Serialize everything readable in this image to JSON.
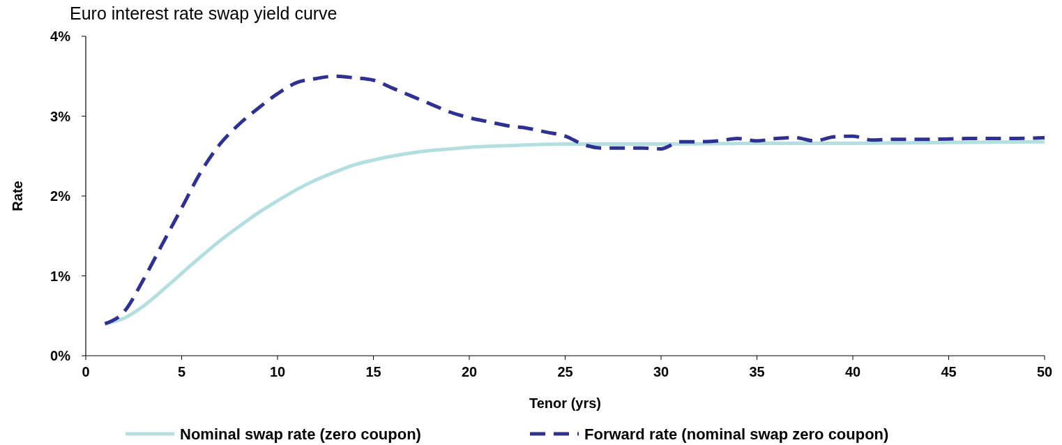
{
  "chart_data": {
    "type": "line",
    "title": "Euro interest rate swap yield curve",
    "xlabel": "Tenor (yrs)",
    "ylabel": "Rate",
    "xlim": [
      0,
      50
    ],
    "xticks": [
      0,
      5,
      10,
      15,
      20,
      25,
      30,
      35,
      40,
      45,
      50
    ],
    "ylim": [
      0,
      4
    ],
    "yticks": [
      {
        "value": 0,
        "label": "0%"
      },
      {
        "value": 1,
        "label": "1%"
      },
      {
        "value": 2,
        "label": "2%"
      },
      {
        "value": 3,
        "label": "3%"
      },
      {
        "value": 4,
        "label": "4%"
      }
    ],
    "grid": false,
    "legend": "bottom",
    "marker": "none",
    "series": [
      {
        "name": "Nominal swap rate (zero coupon)",
        "color": "#b4dfe0",
        "line_style": "solid",
        "x": [
          1,
          2,
          3,
          4,
          5,
          6,
          7,
          8,
          9,
          10,
          11,
          12,
          13,
          14,
          15,
          16,
          17,
          18,
          19,
          20,
          22,
          25,
          30,
          35,
          40,
          45,
          50
        ],
        "values": [
          0.4,
          0.47,
          0.62,
          0.82,
          1.03,
          1.24,
          1.44,
          1.62,
          1.79,
          1.94,
          2.08,
          2.2,
          2.3,
          2.39,
          2.45,
          2.5,
          2.54,
          2.57,
          2.59,
          2.61,
          2.63,
          2.65,
          2.65,
          2.66,
          2.66,
          2.67,
          2.68
        ]
      },
      {
        "name": "Forward rate (nominal swap zero coupon)",
        "color": "#2e3192",
        "line_style": "dashed",
        "x": [
          1,
          2,
          3,
          4,
          5,
          6,
          7,
          8,
          9,
          10,
          11,
          12,
          13,
          14,
          15,
          16,
          17,
          18,
          19,
          20,
          21,
          22,
          23,
          24,
          25,
          26,
          27,
          28,
          29,
          30,
          31,
          32,
          33,
          34,
          35,
          36,
          37,
          38,
          39,
          40,
          41,
          42,
          44,
          46,
          48,
          50
        ],
        "values": [
          0.4,
          0.55,
          0.95,
          1.4,
          1.85,
          2.3,
          2.65,
          2.9,
          3.1,
          3.28,
          3.42,
          3.47,
          3.5,
          3.48,
          3.45,
          3.35,
          3.25,
          3.15,
          3.05,
          2.98,
          2.93,
          2.88,
          2.85,
          2.8,
          2.75,
          2.64,
          2.6,
          2.6,
          2.6,
          2.59,
          2.68,
          2.68,
          2.69,
          2.72,
          2.69,
          2.72,
          2.73,
          2.69,
          2.74,
          2.75,
          2.7,
          2.71,
          2.71,
          2.72,
          2.72,
          2.73
        ]
      }
    ]
  }
}
